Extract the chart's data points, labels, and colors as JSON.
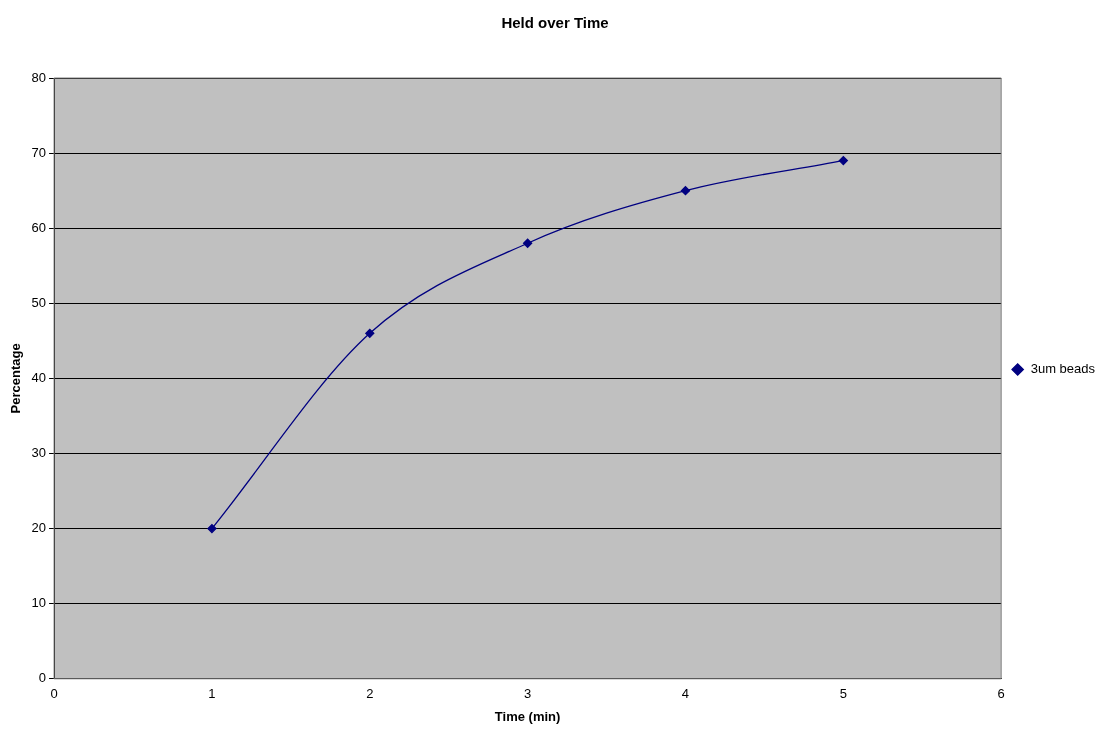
{
  "chart_data": {
    "type": "line",
    "title": "Held over Time",
    "xlabel": "Time (min)",
    "ylabel": "Percentage",
    "x": [
      1,
      2,
      3,
      4,
      5
    ],
    "series": [
      {
        "name": "3um beads",
        "color": "#000080",
        "values": [
          20,
          46,
          58,
          65,
          69
        ]
      }
    ],
    "xlim": [
      0,
      6
    ],
    "xticks": [
      0,
      1,
      2,
      3,
      4,
      5,
      6
    ],
    "ylim": [
      0,
      80
    ],
    "yticks": [
      0,
      10,
      20,
      30,
      40,
      50,
      60,
      70,
      80
    ],
    "grid": "y",
    "legend": "right",
    "marker": "diamond",
    "line_style": "solid"
  }
}
